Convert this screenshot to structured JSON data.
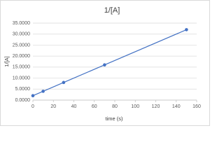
{
  "chart_data": {
    "type": "scatter-line",
    "title": "1/[A]",
    "x_label": "time (s)",
    "y_label": "1/[A]",
    "x": [
      0,
      10,
      30,
      70,
      150
    ],
    "values": [
      2,
      4,
      8,
      16,
      32
    ],
    "color": "#4472c4",
    "xlim": [
      0,
      160
    ],
    "xticks": [
      0,
      20,
      40,
      60,
      80,
      100,
      120,
      140,
      160
    ],
    "ylim": [
      0,
      35
    ],
    "yticks": [
      {
        "value": 0,
        "label": "0.0000"
      },
      {
        "value": 5,
        "label": "5.0000"
      },
      {
        "value": 10,
        "label": "10.0000"
      },
      {
        "value": 15,
        "label": "15.0000"
      },
      {
        "value": 20,
        "label": "20.0000"
      },
      {
        "value": 25,
        "label": "25.0000"
      },
      {
        "value": 30,
        "label": "30.0000"
      },
      {
        "value": 35,
        "label": "35.0000"
      }
    ],
    "grid": true
  }
}
